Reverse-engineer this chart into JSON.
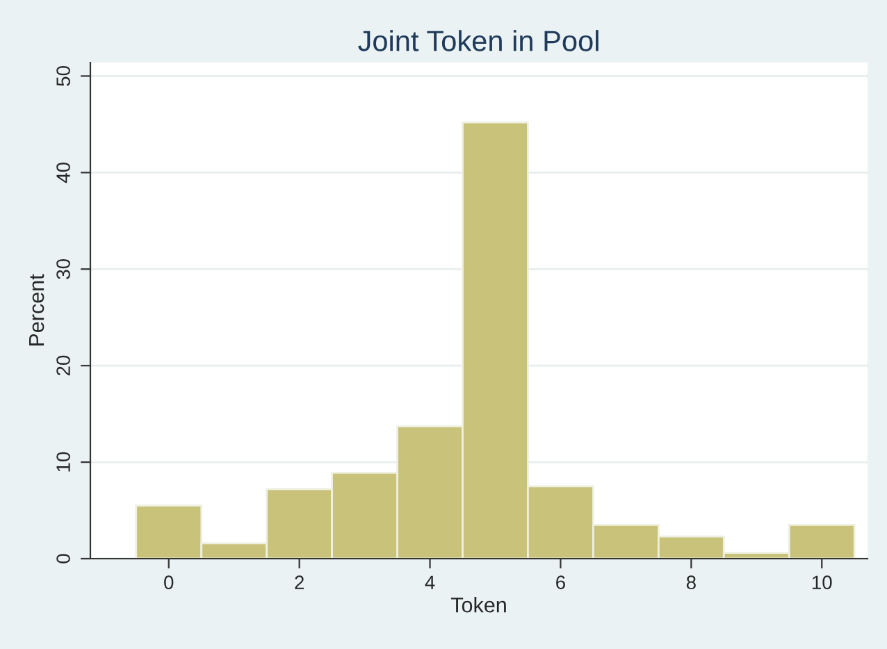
{
  "chart_data": {
    "type": "histogram",
    "title": "Joint Token in Pool",
    "xlabel": "Token",
    "ylabel": "Percent",
    "bins": [
      -0.5,
      0.5,
      1.5,
      2.5,
      3.5,
      4.5,
      5.5,
      6.5,
      7.5,
      8.5,
      9.5,
      10.5
    ],
    "values": [
      5.5,
      1.6,
      7.2,
      8.9,
      13.7,
      45.2,
      7.5,
      3.5,
      2.3,
      0.6,
      3.5
    ],
    "color": "#c9c27a",
    "xlim": [
      -1.2,
      10.7
    ],
    "xticks": [
      0,
      2,
      4,
      6,
      8,
      10
    ],
    "ylim": [
      0,
      51.4
    ],
    "yticks": [
      0,
      10,
      20,
      30,
      40,
      50
    ],
    "grid": "y"
  }
}
